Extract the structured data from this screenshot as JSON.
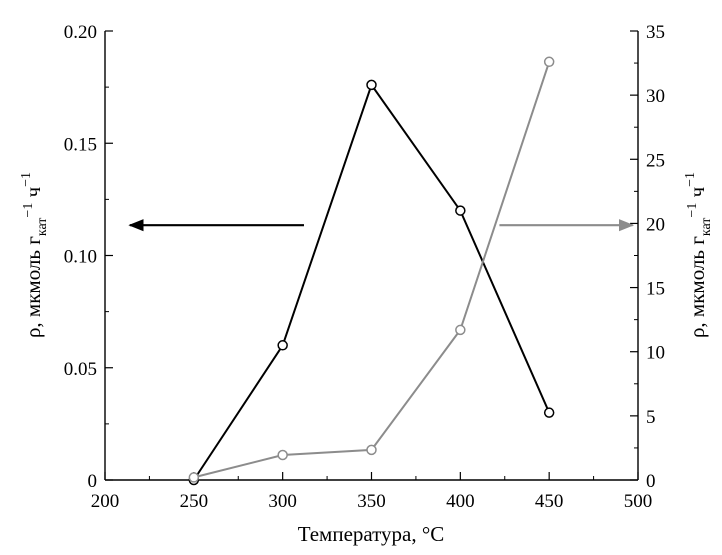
{
  "chart_data": {
    "type": "line",
    "title": "",
    "xlabel": "Температура, °C",
    "x_ticks": [
      "200",
      "250",
      "300",
      "350",
      "400",
      "450",
      "500"
    ],
    "xlim": [
      200,
      500
    ],
    "y_left": {
      "label_main": "ρ, мкмоль г",
      "label_sub": "кат",
      "label_tail": "ч",
      "label_sup": "−1",
      "ylim": [
        0,
        0.2
      ],
      "ticks": [
        "0",
        "0.05",
        "0.10",
        "0.15",
        "0.20"
      ]
    },
    "y_right": {
      "label_main": "ρ, мкмоль г",
      "label_sub": "кат",
      "label_tail": "ч",
      "label_sup": "−1",
      "ylim": [
        0,
        35
      ],
      "ticks": [
        "0",
        "5",
        "10",
        "15",
        "20",
        "25",
        "30",
        "35"
      ]
    },
    "grid": false,
    "series": [
      {
        "axis": "left",
        "color": "#000000",
        "arrow_direction": "left",
        "points": [
          [
            250,
            0
          ],
          [
            300,
            0.06
          ],
          [
            350,
            0.176
          ],
          [
            400,
            0.12
          ],
          [
            450,
            0.03
          ]
        ]
      },
      {
        "axis": "right",
        "color": "#8c8c8c",
        "arrow_direction": "right",
        "points": [
          [
            250,
            0.2
          ],
          [
            300,
            1.95
          ],
          [
            350,
            2.35
          ],
          [
            400,
            11.7
          ],
          [
            450,
            32.6
          ]
        ]
      }
    ]
  }
}
